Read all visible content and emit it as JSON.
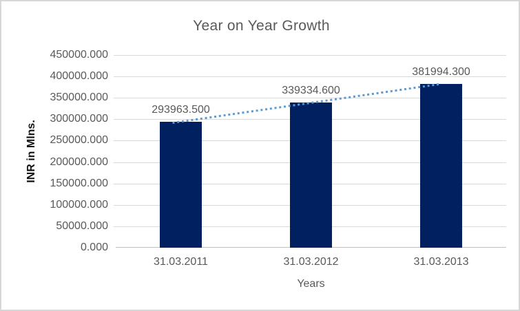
{
  "chart_data": {
    "type": "bar",
    "title": "Year on Year Growth",
    "xlabel": "Years",
    "ylabel": "INR in Mlns.",
    "categories": [
      "31.03.2011",
      "31.03.2012",
      "31.03.2013"
    ],
    "values": [
      293963.5,
      339334.6,
      381994.3
    ],
    "data_labels": [
      "293963.500",
      "339334.600",
      "381994.300"
    ],
    "ylim": [
      0,
      450000
    ],
    "ytick_step": 50000,
    "ytick_labels": [
      "0.000",
      "50000.000",
      "100000.000",
      "150000.000",
      "200000.000",
      "250000.000",
      "300000.000",
      "350000.000",
      "400000.000",
      "450000.000"
    ],
    "grid": true,
    "legend": "none",
    "trendline": {
      "type": "linear",
      "style": "dotted"
    },
    "colors": {
      "bar": "#002060",
      "trendline": "#5b9bd5",
      "gridline": "#d9d9d9",
      "axis_line": "#bfbfbf",
      "text": "#595959",
      "ylabel_text": "#111111",
      "background": "#ffffff",
      "border": "#d7d7d7"
    }
  }
}
